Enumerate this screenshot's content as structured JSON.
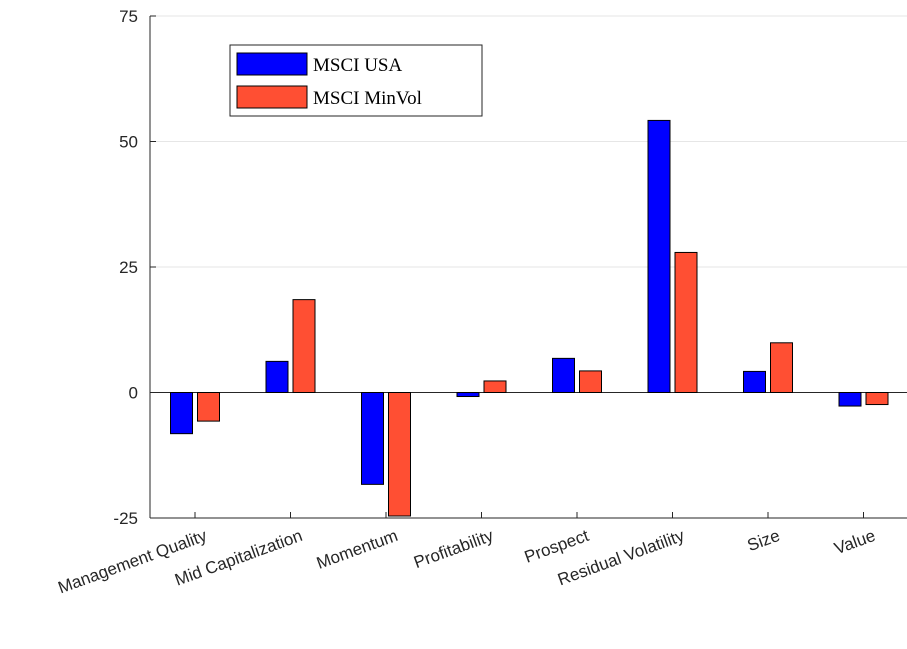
{
  "chart_data": {
    "type": "bar",
    "categories": [
      "Management Quality",
      "Mid Capitalization",
      "Momentum",
      "Profitability",
      "Prospect",
      "Residual Volatility",
      "Size",
      "Value"
    ],
    "series": [
      {
        "name": "MSCI USA",
        "color": "#0000ff",
        "values": [
          -8.2,
          6.2,
          -18.3,
          -0.8,
          6.8,
          54.2,
          4.2,
          -2.7
        ]
      },
      {
        "name": "MSCI MinVol",
        "color": "#ff4f33",
        "values": [
          -5.7,
          18.5,
          -24.6,
          2.3,
          4.3,
          27.9,
          9.9,
          -2.4
        ]
      }
    ],
    "yticks": [
      -25,
      0,
      25,
      50,
      75
    ],
    "ylim": [
      -25,
      75
    ],
    "grid": "horizontal",
    "legend": "top-left"
  }
}
